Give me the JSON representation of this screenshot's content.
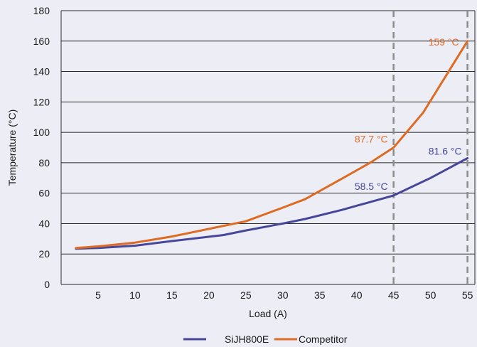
{
  "chart_data": {
    "type": "line",
    "title": "",
    "xlabel": "Load (A)",
    "ylabel": "Temperature (°C)",
    "xlim": [
      0,
      56
    ],
    "ylim": [
      0,
      180
    ],
    "xticks": [
      5,
      10,
      15,
      20,
      25,
      30,
      35,
      40,
      45,
      50,
      55
    ],
    "yticks": [
      0,
      20,
      40,
      60,
      80,
      100,
      120,
      140,
      160,
      180
    ],
    "grid": {
      "horizontal": true,
      "vertical": false
    },
    "legend_position": "bottom-center",
    "series": [
      {
        "name": "SiJH800E",
        "color": "#46479a",
        "x": [
          2,
          5,
          10,
          15,
          22,
          25,
          30,
          33,
          38,
          45,
          50,
          55
        ],
        "y": [
          23.5,
          24,
          25.5,
          28.5,
          32.5,
          35.5,
          40,
          43,
          49,
          58.5,
          70,
          83
        ]
      },
      {
        "name": "Competitor",
        "color": "#de6b24",
        "x": [
          2,
          5,
          10,
          15,
          20,
          25,
          30,
          33,
          38,
          42,
          45,
          49,
          55
        ],
        "y": [
          24,
          25,
          27.5,
          31.5,
          36.5,
          41.5,
          50.5,
          56,
          69.5,
          80.5,
          90,
          113,
          160
        ]
      }
    ],
    "reference_lines": [
      {
        "axis": "x",
        "value": 45,
        "style": "dashed",
        "color": "#8c8c8c"
      },
      {
        "axis": "x",
        "value": 55,
        "style": "dashed",
        "color": "#8c8c8c"
      }
    ],
    "annotations": [
      {
        "text": "159 °C",
        "x": 55,
        "y": 159,
        "color": "#de6b24",
        "anchor": "end"
      },
      {
        "text": "87.7 °C",
        "x": 45,
        "y": 87.7,
        "color": "#de6b24",
        "anchor": "end"
      },
      {
        "text": "58.5 °C",
        "x": 45,
        "y": 58.5,
        "color": "#46479a",
        "anchor": "end"
      },
      {
        "text": "81.6 °C",
        "x": 55,
        "y": 81.6,
        "color": "#46479a",
        "anchor": "end"
      }
    ]
  }
}
